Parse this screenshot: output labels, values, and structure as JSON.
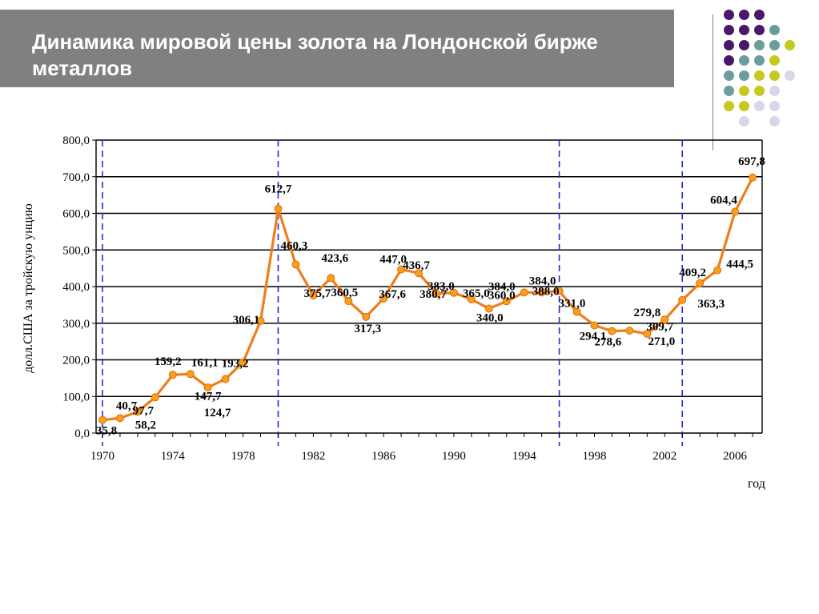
{
  "slide": {
    "title": "Динамика мировой цены золота на Лондонской бирже металлов"
  },
  "decor": {
    "dot_colors": {
      "purple": "#4b176b",
      "teal": "#6e9c9c",
      "lime": "#c6c91e",
      "lavender": "#d8d7ea"
    },
    "dot_grid": [
      [
        "purple",
        "purple",
        "purple",
        "",
        ""
      ],
      [
        "purple",
        "purple",
        "purple",
        "teal",
        ""
      ],
      [
        "purple",
        "purple",
        "teal",
        "teal",
        "lime"
      ],
      [
        "purple",
        "teal",
        "teal",
        "lime",
        ""
      ],
      [
        "teal",
        "teal",
        "lime",
        "lime",
        "lavender"
      ],
      [
        "teal",
        "lime",
        "lime",
        "lavender",
        ""
      ],
      [
        "lime",
        "lime",
        "lavender",
        "lavender",
        ""
      ],
      [
        "",
        "lavender",
        "",
        "lavender",
        ""
      ]
    ]
  },
  "chart_data": {
    "type": "line",
    "title": "",
    "xlabel": "год",
    "ylabel": "долл.США за тройскую унцию",
    "ylim": [
      0,
      800
    ],
    "xlim": [
      1970,
      2007
    ],
    "yticks": [
      "0,0",
      "100,0",
      "200,0",
      "300,0",
      "400,0",
      "500,0",
      "600,0",
      "700,0",
      "800,0"
    ],
    "xticks": [
      "1970",
      "1974",
      "1978",
      "1982",
      "1986",
      "1990",
      "1994",
      "1998",
      "2002",
      "2006"
    ],
    "grid": true,
    "line_color": "#f07d1a",
    "marker_color": "#f7a11b",
    "divider_color": "#1f2ed6",
    "dividers": [
      1970,
      1980,
      1996,
      2003
    ],
    "x": [
      1970,
      1971,
      1972,
      1973,
      1974,
      1975,
      1976,
      1977,
      1978,
      1979,
      1980,
      1981,
      1982,
      1983,
      1984,
      1985,
      1986,
      1987,
      1988,
      1989,
      1990,
      1991,
      1992,
      1993,
      1994,
      1995,
      1996,
      1997,
      1998,
      1999,
      2000,
      2001,
      2002,
      2003,
      2004,
      2005,
      2006,
      2007
    ],
    "y": [
      35.8,
      40.7,
      58.2,
      97.7,
      159.2,
      161.1,
      124.7,
      147.7,
      193.2,
      306.1,
      612.7,
      460.3,
      375.7,
      423.6,
      360.5,
      317.3,
      367.6,
      447.0,
      436.7,
      380.7,
      383.0,
      365.0,
      340.0,
      360.0,
      384.0,
      384.0,
      388.0,
      331.0,
      294.1,
      278.6,
      279.8,
      271.0,
      309.7,
      363.3,
      409.2,
      444.5,
      604.4,
      697.8
    ],
    "point_labels": [
      "35,8",
      "40,7",
      "58,2",
      "97,7",
      "159,2",
      "161,1",
      "124,7",
      "147,7",
      "193,2",
      "306,1",
      "612,7",
      "460,3",
      "375,7",
      "423,6",
      "360,5",
      "317,3",
      "367,6",
      "447,0",
      "436,7",
      "380,7",
      "383,0",
      "365,0",
      "340,0",
      "360,0",
      "384,0",
      "384,0",
      "388,0",
      "331,0",
      "294,1",
      "278,6",
      "279,8",
      "271,0",
      "309,7",
      "363,3",
      "409,2",
      "444,5",
      "604,4",
      "697,8"
    ],
    "series": [
      {
        "values": [
          35.8,
          40.7,
          58.2,
          97.7,
          159.2,
          161.1,
          124.7,
          147.7,
          193.2,
          306.1,
          612.7,
          460.3,
          375.7,
          423.6,
          360.5,
          317.3,
          367.6,
          447.0,
          436.7,
          380.7,
          383.0,
          365.0,
          340.0,
          360.0,
          384.0,
          384.0,
          388.0,
          331.0,
          294.1,
          278.6,
          279.8,
          271.0,
          309.7,
          363.3,
          409.2,
          444.5,
          604.4,
          697.8
        ]
      }
    ]
  }
}
